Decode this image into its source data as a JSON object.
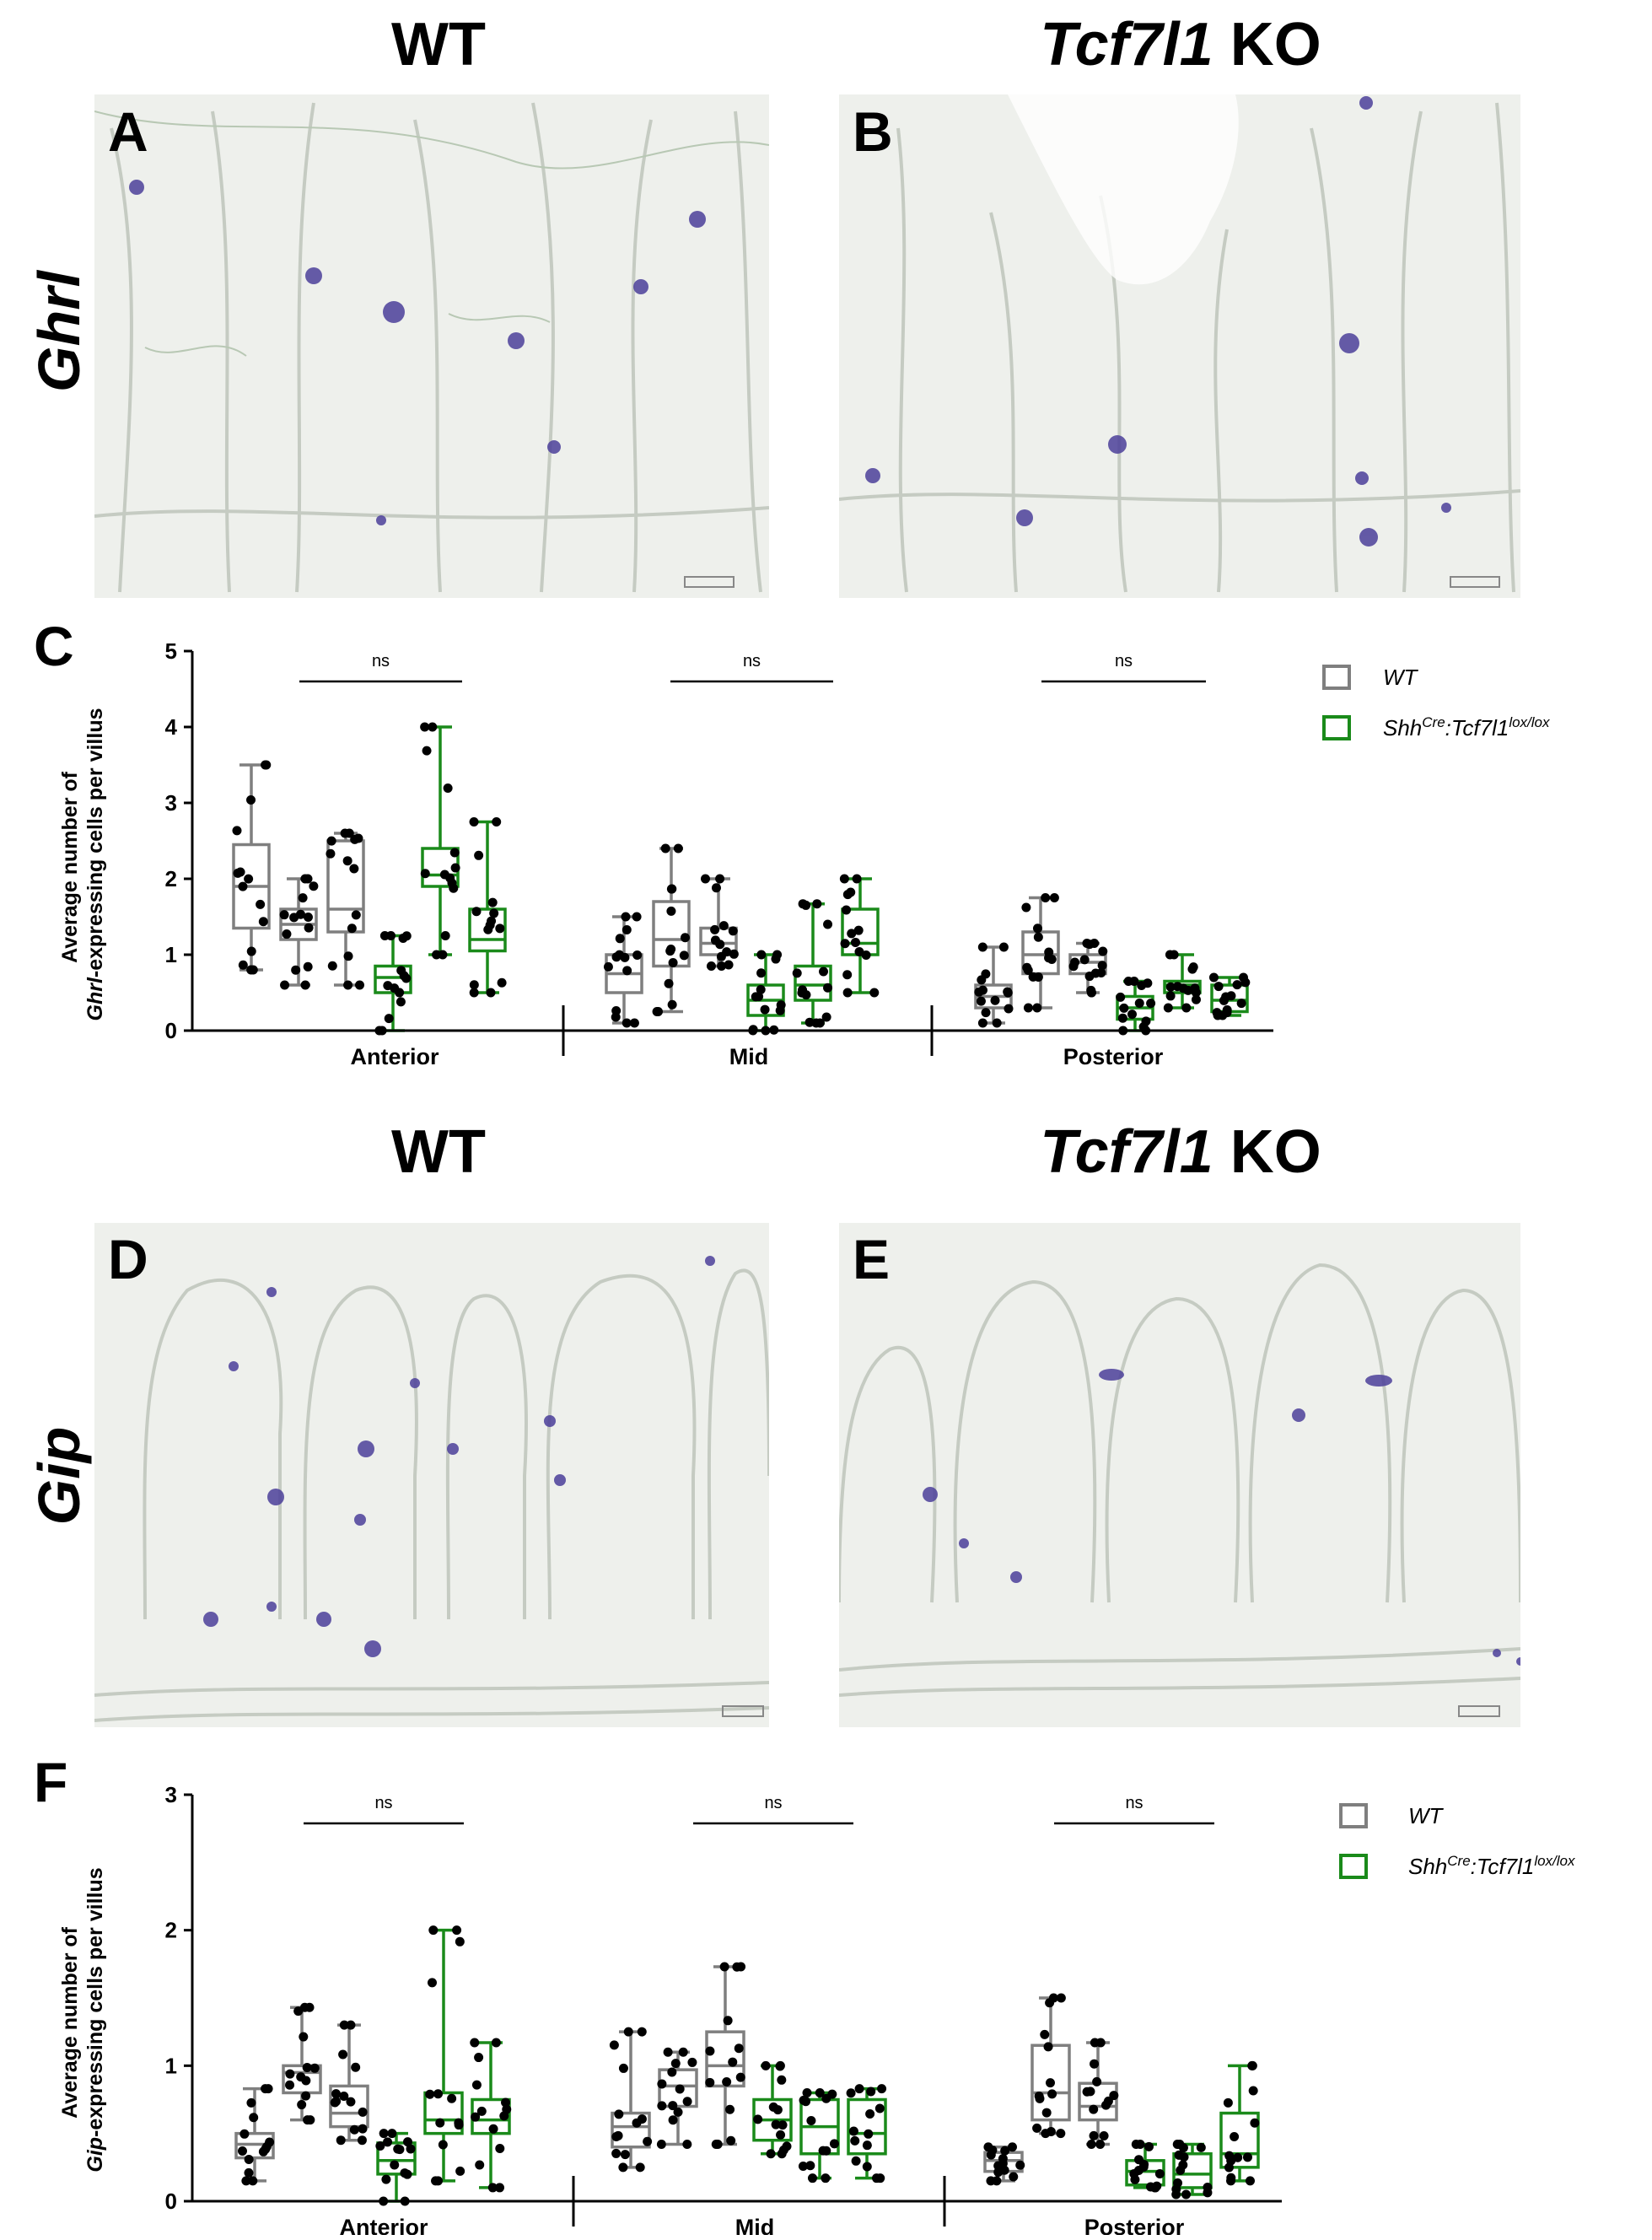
{
  "titles": {
    "wt_top": "WT",
    "ko_top_gene": "Tcf7l1",
    "ko_top_suffix": " KO",
    "wt_bottom": "WT",
    "ko_bottom_gene": "Tcf7l1",
    "ko_bottom_suffix": " KO"
  },
  "row_labels": {
    "top": "Ghrl",
    "bottom": "Gip"
  },
  "panel_letters": {
    "a": "A",
    "b": "B",
    "c": "C",
    "d": "D",
    "e": "E",
    "f": "F"
  },
  "colors": {
    "wt": "#7f7f7f",
    "ko": "#1a8a1a",
    "tissue": "#eef0ec",
    "stain": "#4b3f9a"
  },
  "legend": {
    "wt_label": "WT",
    "ko_label_main": "Shh",
    "ko_label_sup1": "Cre",
    "ko_label_mid": ":Tcf7l1",
    "ko_label_sup2": "lox/lox"
  },
  "chart_data": [
    {
      "type": "box",
      "panel": "C",
      "ylabel_line1": "Average number of",
      "ylabel_gene": "Ghrl",
      "ylabel_line2": "-expressing  cells per villus",
      "ylim": [
        0,
        5
      ],
      "yticks": [
        "0",
        "1",
        "2",
        "3",
        "4",
        "5"
      ],
      "groups": [
        "Anterior",
        "Mid",
        "Posterior"
      ],
      "significance": [
        "ns",
        "ns",
        "ns"
      ],
      "boxes": [
        {
          "group": "Anterior",
          "series": "WT",
          "min": 0.8,
          "q1": 1.35,
          "median": 1.9,
          "q3": 2.45,
          "max": 3.5
        },
        {
          "group": "Anterior",
          "series": "WT",
          "min": 0.6,
          "q1": 1.2,
          "median": 1.4,
          "q3": 1.6,
          "max": 2.0
        },
        {
          "group": "Anterior",
          "series": "WT",
          "min": 0.6,
          "q1": 1.3,
          "median": 1.6,
          "q3": 2.5,
          "max": 2.6
        },
        {
          "group": "Anterior",
          "series": "KO",
          "min": 0.0,
          "q1": 0.5,
          "median": 0.7,
          "q3": 0.85,
          "max": 1.25
        },
        {
          "group": "Anterior",
          "series": "KO",
          "min": 1.0,
          "q1": 1.9,
          "median": 2.05,
          "q3": 2.4,
          "max": 4.0
        },
        {
          "group": "Anterior",
          "series": "KO",
          "min": 0.5,
          "q1": 1.05,
          "median": 1.2,
          "q3": 1.6,
          "max": 2.75
        },
        {
          "group": "Mid",
          "series": "WT",
          "min": 0.1,
          "q1": 0.5,
          "median": 0.75,
          "q3": 1.0,
          "max": 1.5
        },
        {
          "group": "Mid",
          "series": "WT",
          "min": 0.25,
          "q1": 0.85,
          "median": 1.2,
          "q3": 1.7,
          "max": 2.4
        },
        {
          "group": "Mid",
          "series": "WT",
          "min": 0.85,
          "q1": 1.0,
          "median": 1.15,
          "q3": 1.35,
          "max": 2.0
        },
        {
          "group": "Mid",
          "series": "KO",
          "min": 0.0,
          "q1": 0.2,
          "median": 0.4,
          "q3": 0.6,
          "max": 1.0
        },
        {
          "group": "Mid",
          "series": "KO",
          "min": 0.1,
          "q1": 0.4,
          "median": 0.6,
          "q3": 0.85,
          "max": 1.67
        },
        {
          "group": "Mid",
          "series": "KO",
          "min": 0.5,
          "q1": 1.0,
          "median": 1.15,
          "q3": 1.6,
          "max": 2.0
        },
        {
          "group": "Posterior",
          "series": "WT",
          "min": 0.1,
          "q1": 0.3,
          "median": 0.45,
          "q3": 0.6,
          "max": 1.1
        },
        {
          "group": "Posterior",
          "series": "WT",
          "min": 0.3,
          "q1": 0.75,
          "median": 1.0,
          "q3": 1.3,
          "max": 1.75
        },
        {
          "group": "Posterior",
          "series": "WT",
          "min": 0.5,
          "q1": 0.75,
          "median": 0.9,
          "q3": 1.0,
          "max": 1.15
        },
        {
          "group": "Posterior",
          "series": "KO",
          "min": 0.0,
          "q1": 0.15,
          "median": 0.3,
          "q3": 0.45,
          "max": 0.65
        },
        {
          "group": "Posterior",
          "series": "KO",
          "min": 0.3,
          "q1": 0.5,
          "median": 0.6,
          "q3": 0.65,
          "max": 1.0
        },
        {
          "group": "Posterior",
          "series": "KO",
          "min": 0.2,
          "q1": 0.25,
          "median": 0.4,
          "q3": 0.6,
          "max": 0.7
        }
      ]
    },
    {
      "type": "box",
      "panel": "F",
      "ylabel_line1": "Average number of",
      "ylabel_gene": "Gip",
      "ylabel_line2": "-expressing  cells per villus",
      "ylim": [
        0,
        3
      ],
      "yticks": [
        "0",
        "1",
        "2",
        "3"
      ],
      "groups": [
        "Anterior",
        "Mid",
        "Posterior"
      ],
      "significance": [
        "ns",
        "ns",
        "ns"
      ],
      "boxes": [
        {
          "group": "Anterior",
          "series": "WT",
          "min": 0.15,
          "q1": 0.32,
          "median": 0.42,
          "q3": 0.5,
          "max": 0.83
        },
        {
          "group": "Anterior",
          "series": "WT",
          "min": 0.6,
          "q1": 0.8,
          "median": 0.95,
          "q3": 1.0,
          "max": 1.43
        },
        {
          "group": "Anterior",
          "series": "WT",
          "min": 0.45,
          "q1": 0.55,
          "median": 0.65,
          "q3": 0.85,
          "max": 1.3
        },
        {
          "group": "Anterior",
          "series": "KO",
          "min": 0.0,
          "q1": 0.2,
          "median": 0.3,
          "q3": 0.43,
          "max": 0.5
        },
        {
          "group": "Anterior",
          "series": "KO",
          "min": 0.15,
          "q1": 0.5,
          "median": 0.6,
          "q3": 0.8,
          "max": 2.0
        },
        {
          "group": "Anterior",
          "series": "KO",
          "min": 0.1,
          "q1": 0.5,
          "median": 0.6,
          "q3": 0.75,
          "max": 1.17
        },
        {
          "group": "Mid",
          "series": "WT",
          "min": 0.25,
          "q1": 0.4,
          "median": 0.55,
          "q3": 0.65,
          "max": 1.25
        },
        {
          "group": "Mid",
          "series": "WT",
          "min": 0.42,
          "q1": 0.7,
          "median": 0.85,
          "q3": 0.97,
          "max": 1.1
        },
        {
          "group": "Mid",
          "series": "WT",
          "min": 0.42,
          "q1": 0.85,
          "median": 1.0,
          "q3": 1.25,
          "max": 1.73
        },
        {
          "group": "Mid",
          "series": "KO",
          "min": 0.35,
          "q1": 0.45,
          "median": 0.6,
          "q3": 0.75,
          "max": 1.0
        },
        {
          "group": "Mid",
          "series": "KO",
          "min": 0.17,
          "q1": 0.35,
          "median": 0.55,
          "q3": 0.75,
          "max": 0.8
        },
        {
          "group": "Mid",
          "series": "KO",
          "min": 0.17,
          "q1": 0.35,
          "median": 0.5,
          "q3": 0.75,
          "max": 0.83
        },
        {
          "group": "Posterior",
          "series": "WT",
          "min": 0.15,
          "q1": 0.22,
          "median": 0.3,
          "q3": 0.36,
          "max": 0.4
        },
        {
          "group": "Posterior",
          "series": "WT",
          "min": 0.5,
          "q1": 0.6,
          "median": 0.8,
          "q3": 1.15,
          "max": 1.5
        },
        {
          "group": "Posterior",
          "series": "WT",
          "min": 0.42,
          "q1": 0.6,
          "median": 0.7,
          "q3": 0.87,
          "max": 1.17
        },
        {
          "group": "Posterior",
          "series": "KO",
          "min": 0.1,
          "q1": 0.12,
          "median": 0.22,
          "q3": 0.3,
          "max": 0.42
        },
        {
          "group": "Posterior",
          "series": "KO",
          "min": 0.05,
          "q1": 0.1,
          "median": 0.2,
          "q3": 0.35,
          "max": 0.42
        },
        {
          "group": "Posterior",
          "series": "KO",
          "min": 0.15,
          "q1": 0.25,
          "median": 0.35,
          "q3": 0.65,
          "max": 1.0
        }
      ]
    }
  ]
}
